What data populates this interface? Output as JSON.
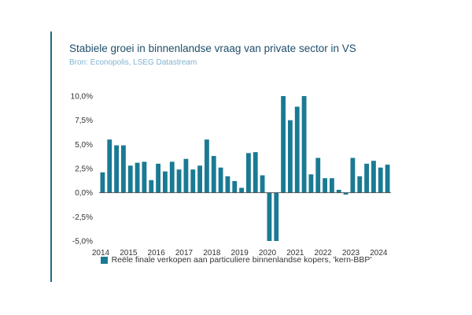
{
  "title": "Stabiele groei in binnenlandse vraag van private sector in VS",
  "subtitle": "Bron: Econopolis, LSEG Datastream",
  "colors": {
    "bar": "#1a7a94",
    "accent": "#1f6b86",
    "zero_line": "#444444"
  },
  "chart_data": {
    "type": "bar",
    "title": "Stabiele groei in binnenlandse vraag van private sector in VS",
    "subtitle": "Bron: Econopolis, LSEG Datastream",
    "xlabel": "",
    "ylabel": "",
    "ylim": [
      -5.0,
      10.0
    ],
    "y_ticks": [
      "10,0%",
      "7,5%",
      "5,0%",
      "2,5%",
      "0,0%",
      "-2,5%",
      "-5,0%"
    ],
    "y_tick_values": [
      10.0,
      7.5,
      5.0,
      2.5,
      0.0,
      -2.5,
      -5.0
    ],
    "x_tick_labels": [
      "2014",
      "2015",
      "2016",
      "2017",
      "2018",
      "2019",
      "2020",
      "2021",
      "2022",
      "2023",
      "2024"
    ],
    "x_tick_quarter_index": [
      0,
      4,
      8,
      12,
      16,
      20,
      24,
      28,
      32,
      36,
      40
    ],
    "grid": false,
    "legend_position": "bottom",
    "series": [
      {
        "name": "Reële finale verkopen aan particuliere binnenlandse kopers, 'kern-BBP'",
        "values": [
          2.1,
          5.5,
          4.9,
          4.9,
          2.8,
          3.1,
          3.2,
          1.3,
          3.0,
          2.2,
          3.2,
          2.4,
          3.5,
          2.4,
          2.8,
          5.5,
          3.8,
          2.6,
          1.7,
          1.2,
          0.5,
          4.1,
          4.2,
          1.8,
          -5.0,
          -5.0,
          10.0,
          7.5,
          8.9,
          10.0,
          1.9,
          3.6,
          1.5,
          1.5,
          0.3,
          -0.2,
          3.6,
          1.7,
          3.0,
          3.3,
          2.6,
          2.9
        ]
      }
    ]
  }
}
